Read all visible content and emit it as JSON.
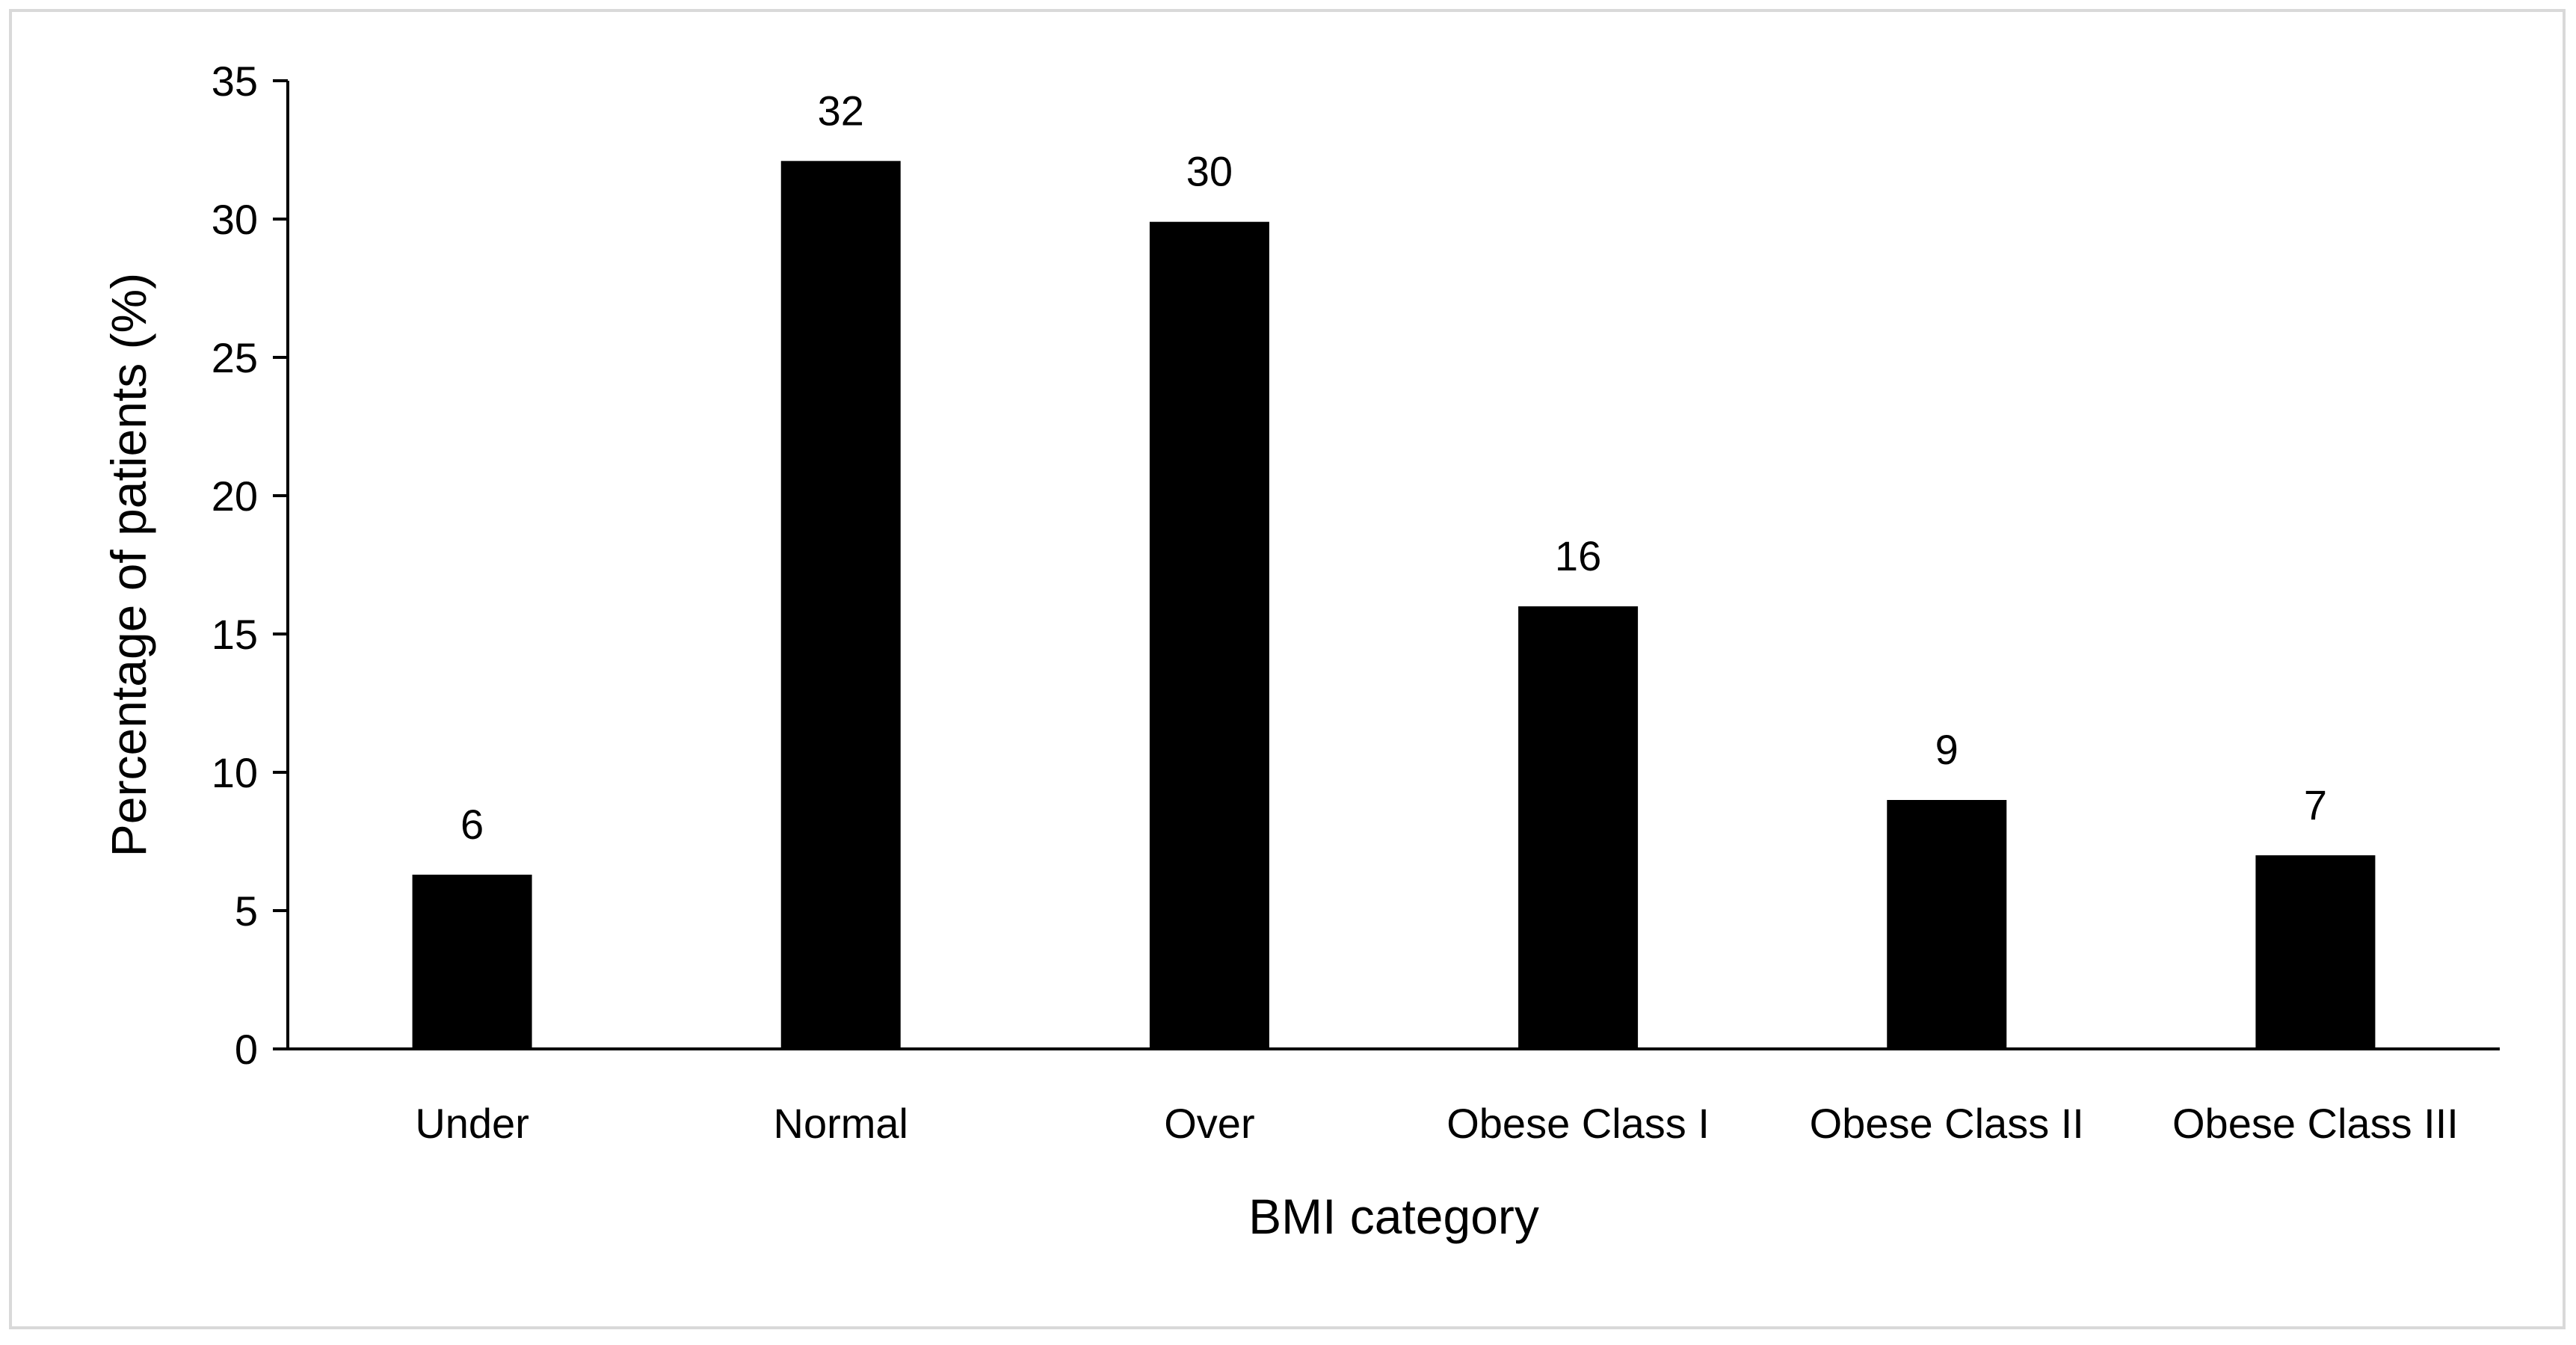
{
  "chart_data": {
    "type": "bar",
    "title": "",
    "xlabel": "BMI category",
    "ylabel": "Percentage of patients (%)",
    "categories": [
      "Under",
      "Normal",
      "Over",
      "Obese Class I",
      "Obese Class II",
      "Obese Class III"
    ],
    "values": [
      6.3,
      32.1,
      29.9,
      16.0,
      9.0,
      7.0
    ],
    "data_labels": [
      "6",
      "32",
      "30",
      "16",
      "9",
      "7"
    ],
    "ylim": [
      0,
      35
    ],
    "yticks": [
      0,
      5,
      10,
      15,
      20,
      25,
      30,
      35
    ],
    "grid": false,
    "legend": "none",
    "colors": {
      "bar": "#000000",
      "axis": "#000000",
      "frame_border": "#d9d9d9",
      "background": "#ffffff"
    }
  }
}
